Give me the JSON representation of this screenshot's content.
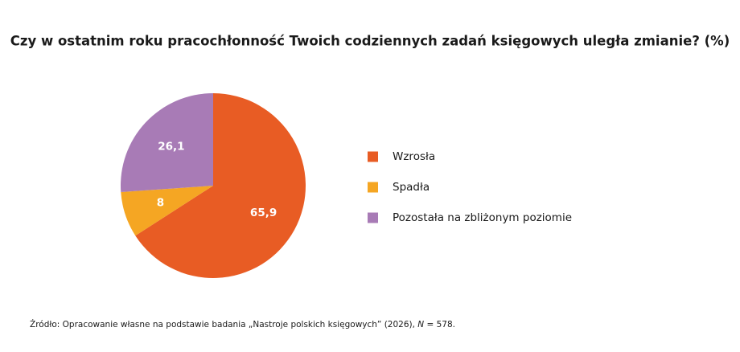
{
  "chart_data": {
    "type": "pie",
    "title": "Czy w ostatnim roku pracochłonność Twoich codziennych zadań księgowych uległa zmianie? (%)",
    "categories": [
      "Wzrosła",
      "Spadła",
      "Pozostała na zbliżonym poziomie"
    ],
    "values": [
      65.9,
      8,
      26.1
    ],
    "value_labels": [
      "65,9",
      "8",
      "26,1"
    ],
    "colors": [
      "#e85c24",
      "#f5a623",
      "#a87bb6"
    ],
    "legend": "right",
    "source": [
      "Źródło: Opracowanie własne na podstawie badania „Nastroje polskich księgowych” (2026), ",
      "N",
      " = 578."
    ]
  }
}
